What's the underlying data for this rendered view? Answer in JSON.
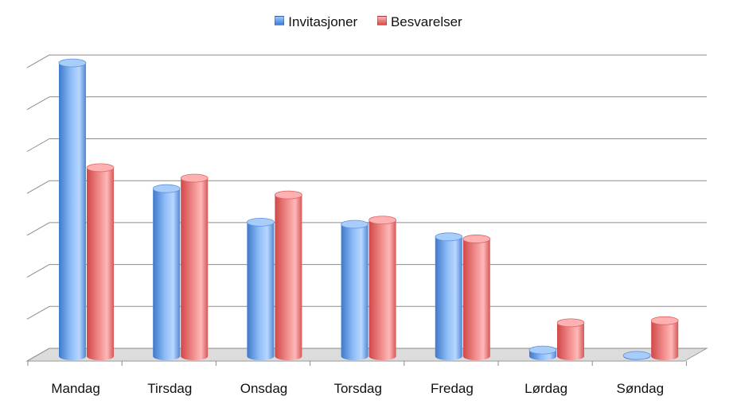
{
  "chart_data": {
    "type": "bar",
    "title": "",
    "xlabel": "",
    "ylabel": "",
    "categories": [
      "Mandag",
      "Tirsdag",
      "Onsdag",
      "Torsdag",
      "Fredag",
      "Lørdag",
      "Søndag"
    ],
    "series": [
      {
        "name": "Invitasjoner",
        "color": "#5b8fd8",
        "values": [
          7.0,
          4.0,
          3.2,
          3.15,
          2.85,
          0.15,
          0.02
        ]
      },
      {
        "name": "Besvarelser",
        "color": "#e06060",
        "values": [
          4.5,
          4.25,
          3.85,
          3.25,
          2.8,
          0.8,
          0.85
        ]
      }
    ],
    "ylim": [
      0,
      7
    ],
    "grid": true,
    "legend_position": "top",
    "style": "3d-cylinder"
  }
}
